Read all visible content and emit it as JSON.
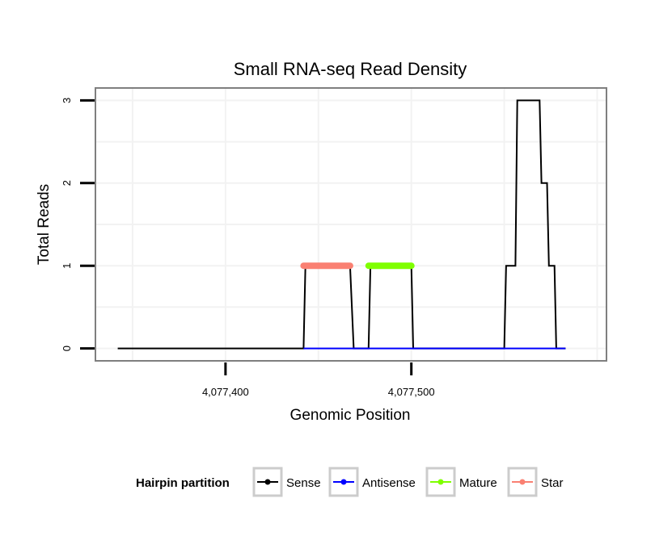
{
  "chart_data": {
    "type": "line",
    "title": "Small RNA-seq Read Density",
    "xlabel": "Genomic Position",
    "ylabel": "Total Reads",
    "xlim": [
      4077330,
      4077605
    ],
    "ylim": [
      -0.15,
      3.15
    ],
    "x_ticks": [
      4077400,
      4077500
    ],
    "x_tick_labels": [
      "4,077,400",
      "4,077,500"
    ],
    "y_ticks": [
      0,
      1,
      2,
      3
    ],
    "y_tick_labels": [
      "0",
      "1",
      "2",
      "3"
    ],
    "grid": true,
    "legend_title": "Hairpin partition",
    "legend_position": "bottom",
    "series": [
      {
        "name": "Sense",
        "color": "#000000",
        "x": [
          4077342,
          4077442,
          4077443,
          4077467,
          4077469,
          4077477,
          4077478,
          4077500,
          4077501,
          4077550,
          4077551,
          4077556,
          4077557,
          4077569,
          4077570,
          4077573,
          4077574,
          4077577,
          4077578,
          4077582,
          4077583
        ],
        "y": [
          0,
          0,
          1,
          1,
          0,
          0,
          1,
          1,
          0,
          0,
          1,
          1,
          3,
          3,
          2,
          2,
          1,
          1,
          0,
          0,
          0
        ]
      },
      {
        "name": "Antisense",
        "color": "#0000ff",
        "x": [
          4077442,
          4077583
        ],
        "y": [
          0,
          0
        ]
      },
      {
        "name": "Mature",
        "color": "#7fff00",
        "x": [
          4077477,
          4077500
        ],
        "y": [
          1,
          1
        ]
      },
      {
        "name": "Star",
        "color": "#fa8072",
        "x": [
          4077442,
          4077467
        ],
        "y": [
          1,
          1
        ]
      }
    ]
  }
}
